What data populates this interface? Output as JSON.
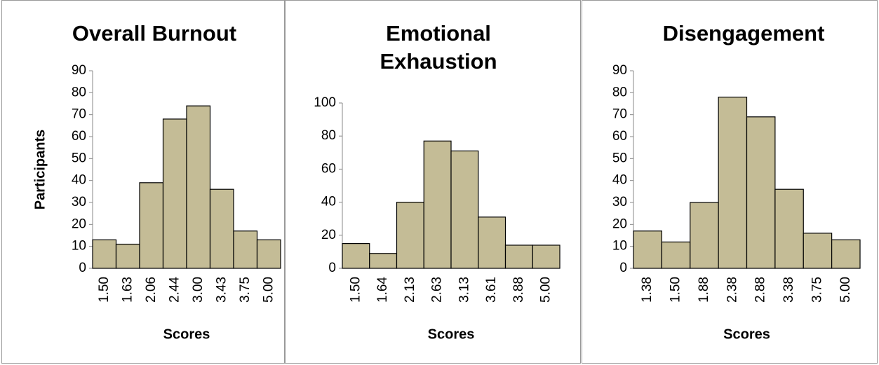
{
  "chart_data": [
    {
      "type": "bar",
      "title": "Overall Burnout",
      "ylabel": "Participants",
      "xlabel": "Scores",
      "categories": [
        "1.50",
        "1.63",
        "2.06",
        "2.44",
        "3.00",
        "3.43",
        "3.75",
        "5.00"
      ],
      "values": [
        13,
        11,
        39,
        68,
        74,
        36,
        17,
        13
      ],
      "color": "#c4bc96",
      "ylim": [
        0,
        90
      ],
      "yticks": [
        0,
        10,
        20,
        30,
        40,
        50,
        60,
        70,
        80,
        90
      ]
    },
    {
      "type": "bar",
      "title": "Emotional Exhaustion",
      "xlabel": "Scores",
      "categories": [
        "1.50",
        "1.64",
        "2.13",
        "2.63",
        "3.13",
        "3.61",
        "3.88",
        "5.00"
      ],
      "values": [
        15,
        9,
        40,
        77,
        71,
        31,
        14,
        14
      ],
      "color": "#c4bc96",
      "ylim": [
        0,
        100
      ],
      "yticks": [
        0,
        20,
        40,
        60,
        80,
        100
      ]
    },
    {
      "type": "bar",
      "title": "Disengagement",
      "xlabel": "Scores",
      "categories": [
        "1.38",
        "1.50",
        "1.88",
        "2.38",
        "2.88",
        "3.38",
        "3.75",
        "5.00"
      ],
      "values": [
        17,
        12,
        30,
        78,
        69,
        36,
        16,
        13
      ],
      "color": "#c4bc96",
      "ylim": [
        0,
        90
      ],
      "yticks": [
        0,
        10,
        20,
        30,
        40,
        50,
        60,
        70,
        80,
        90
      ]
    }
  ]
}
